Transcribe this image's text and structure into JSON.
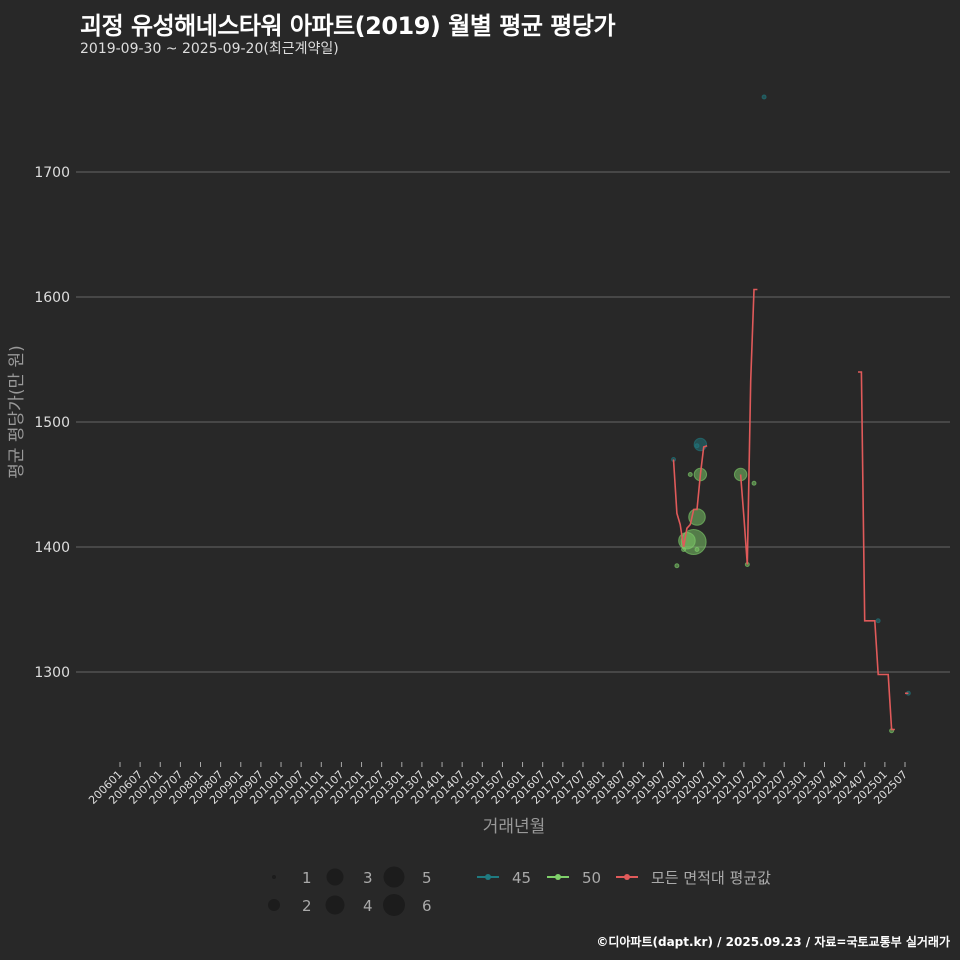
{
  "header": {
    "title": "괴정 유성해네스타워 아파트(2019) 월별 평균 평당가",
    "subtitle": "2019-09-30 ~ 2025-09-20(최근계약일)"
  },
  "caption": "©디아파트(dapt.kr) / 2025.09.23 / 자료=국토교통부 실거래가",
  "chart_data": {
    "type": "scatter",
    "title": "괴정 유성해네스타워 아파트(2019) 월별 평균 평당가",
    "subtitle": "2019-09-30 ~ 2025-09-20(최근계약일)",
    "xlabel": "거래년월",
    "ylabel": "평균 평당가(만 원)",
    "ylim": [
      1230,
      1780
    ],
    "yticks": [
      1300,
      1400,
      1500,
      1600,
      1700
    ],
    "grid": true,
    "legend_position": "bottom",
    "x_categories": [
      "200601",
      "200607",
      "200701",
      "200707",
      "200801",
      "200807",
      "200901",
      "200907",
      "201001",
      "201007",
      "201101",
      "201107",
      "201201",
      "201207",
      "201301",
      "201307",
      "201401",
      "201407",
      "201501",
      "201507",
      "201601",
      "201607",
      "201701",
      "201707",
      "201801",
      "201807",
      "201901",
      "201907",
      "202001",
      "202007",
      "202101",
      "202107",
      "202201",
      "202207",
      "202301",
      "202307",
      "202401",
      "202407",
      "202501",
      "202507"
    ],
    "size_legend": [
      1,
      2,
      3,
      4,
      5,
      6
    ],
    "series": [
      {
        "name": "45",
        "color": "#1f7a80",
        "points": [
          {
            "x": "201910",
            "y": 1470,
            "size": 1
          },
          {
            "x": "202005",
            "y": 1481,
            "size": 1
          },
          {
            "x": "202006",
            "y": 1482,
            "size": 3
          },
          {
            "x": "202201",
            "y": 1760,
            "size": 1
          },
          {
            "x": "202411",
            "y": 1341,
            "size": 1
          },
          {
            "x": "202508",
            "y": 1283,
            "size": 1
          }
        ]
      },
      {
        "name": "50",
        "color": "#7fd06a",
        "points": [
          {
            "x": "201911",
            "y": 1385,
            "size": 1
          },
          {
            "x": "202001",
            "y": 1398,
            "size": 1
          },
          {
            "x": "202002",
            "y": 1405,
            "size": 4
          },
          {
            "x": "202003",
            "y": 1458,
            "size": 1
          },
          {
            "x": "202004",
            "y": 1404,
            "size": 6
          },
          {
            "x": "202005",
            "y": 1424,
            "size": 4
          },
          {
            "x": "202005",
            "y": 1398,
            "size": 1
          },
          {
            "x": "202006",
            "y": 1458,
            "size": 3
          },
          {
            "x": "202106",
            "y": 1458,
            "size": 3
          },
          {
            "x": "202108",
            "y": 1386,
            "size": 1
          },
          {
            "x": "202110",
            "y": 1451,
            "size": 1
          },
          {
            "x": "202503",
            "y": 1253,
            "size": 1
          }
        ]
      },
      {
        "name": "모든 면적대 평균값",
        "color": "#e05a5a",
        "type": "step-line",
        "segments": [
          [
            [
              "201910",
              1470
            ],
            [
              "201911",
              1427
            ],
            [
              "201912",
              1418
            ],
            [
              "202001",
              1400
            ],
            [
              "202002",
              1415
            ],
            [
              "202003",
              1418
            ],
            [
              "202004",
              1430
            ],
            [
              "202005",
              1430
            ],
            [
              "202006",
              1458
            ],
            [
              "202007",
              1480
            ],
            [
              "202008",
              1481
            ]
          ],
          [
            [
              "202106",
              1458
            ],
            [
              "202107",
              1423
            ],
            [
              "202108",
              1386
            ],
            [
              "202109",
              1533
            ],
            [
              "202110",
              1606
            ],
            [
              "202111",
              1606
            ]
          ],
          [
            [
              "202405",
              1540
            ],
            [
              "202406",
              1540
            ],
            [
              "202407",
              1341
            ],
            [
              "202410",
              1341
            ],
            [
              "202411",
              1298
            ],
            [
              "202502",
              1298
            ],
            [
              "202503",
              1254
            ],
            [
              "202504",
              1254
            ]
          ],
          [
            [
              "202507",
              1283
            ],
            [
              "202508",
              1283
            ]
          ]
        ]
      }
    ]
  },
  "legend": {
    "sizes": [
      "1",
      "2",
      "3",
      "4",
      "5",
      "6"
    ],
    "series": [
      "45",
      "50",
      "모든 면적대 평균값"
    ]
  }
}
